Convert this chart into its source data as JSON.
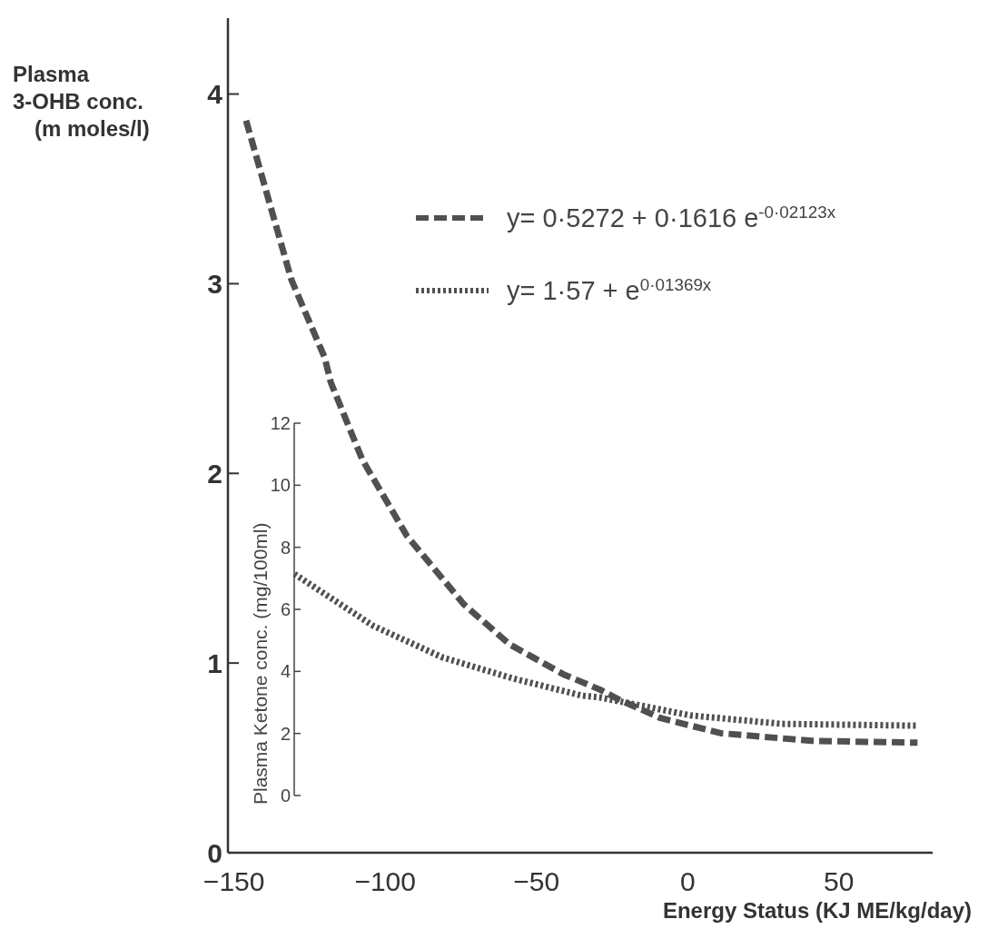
{
  "chart_data": {
    "type": "line",
    "xlabel": "Energy Status (KJ ME/kg/day)",
    "ylabel": "Plasma\n3-OHB conc.\n(m moles/l)",
    "y2label": "Plasma Ketone conc. (mg/100ml)",
    "xlim": [
      -152,
      81
    ],
    "xticks": [
      -150,
      -100,
      -50,
      0,
      50
    ],
    "ylim": [
      0,
      4.4
    ],
    "yticks": [
      0,
      1,
      2,
      3,
      4
    ],
    "y2lim": [
      0,
      12
    ],
    "y2ticks": [
      0,
      2,
      4,
      6,
      8,
      10,
      12
    ],
    "grid": false,
    "legend": "top right",
    "marker": "none",
    "series": [
      {
        "name": "y= 0·5272 + 0·1616 e$^{-0·02123x}$",
        "color": "#505050",
        "line_style": "dashed",
        "x": [
          -146,
          -131,
          -120,
          -118,
          -107.5,
          -92.8,
          -74,
          -59,
          -41,
          -29,
          -23,
          -9,
          11,
          41,
          76
        ],
        "values": [
          3.86,
          3.02,
          2.61,
          2.48,
          2.07,
          1.67,
          1.31,
          1.1,
          0.94,
          0.86,
          0.81,
          0.71,
          0.63,
          0.59,
          0.58
        ]
      },
      {
        "name": "y= 1·57 + e$^{0·01369x}$",
        "color": "#505050",
        "line_style": "dotted",
        "axis": "y2",
        "x": [
          -130,
          -104,
          -81,
          -58,
          -35,
          -29,
          1,
          31,
          76
        ],
        "values": [
          7.14,
          5.47,
          4.45,
          3.78,
          3.22,
          3.16,
          2.58,
          2.31,
          2.25
        ]
      }
    ]
  }
}
